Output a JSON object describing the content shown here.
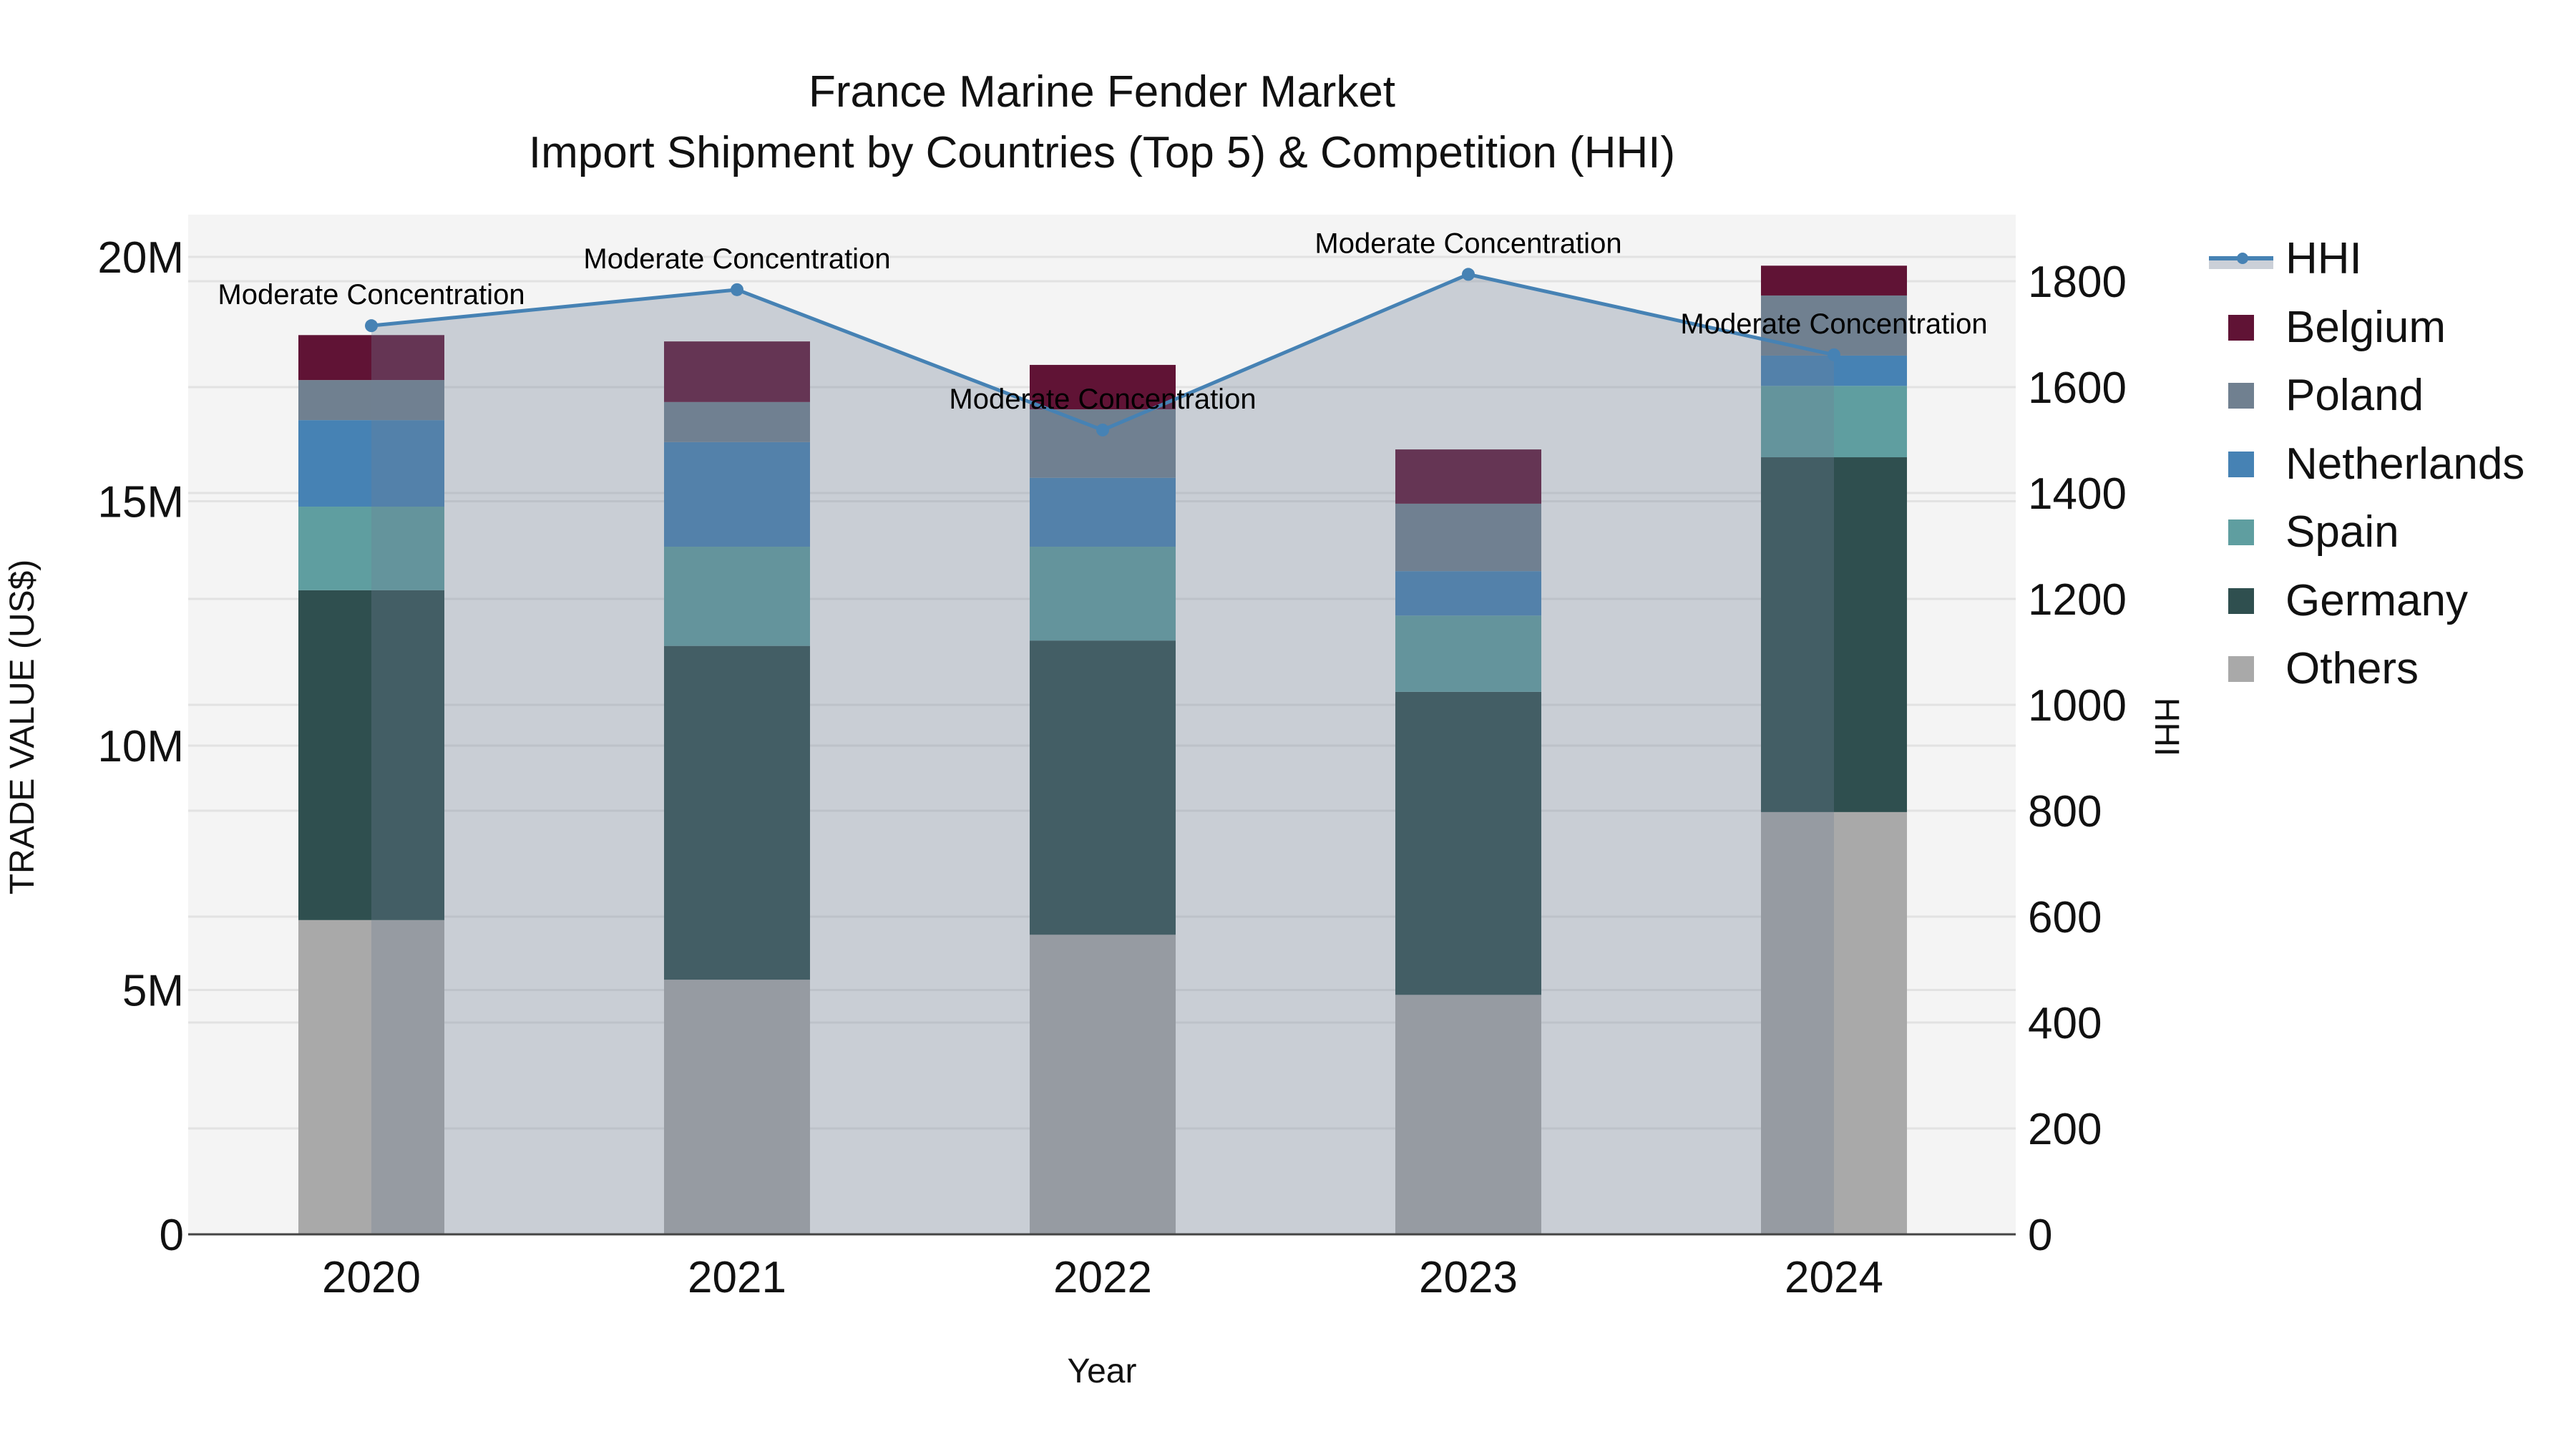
{
  "chart_data": {
    "type": "bar",
    "subtype": "stacked bar with line overlay (secondary axis)",
    "title": "France Marine Fender Market",
    "subtitle": "Import Shipment by Countries (Top 5) & Competition (HHI)",
    "xlabel": "Year",
    "ylabel": "TRADE VALUE (US$)",
    "y2label": "HHI",
    "categories": [
      "2020",
      "2021",
      "2022",
      "2023",
      "2024"
    ],
    "ylim": [
      0,
      20.9
    ],
    "y_ticks": [
      0,
      5,
      10,
      15,
      20
    ],
    "y_tick_labels": [
      "0",
      "5M",
      "10M",
      "15M",
      "20M"
    ],
    "y2lim": [
      0,
      1925
    ],
    "y2_ticks": [
      0,
      200,
      400,
      600,
      800,
      1000,
      1200,
      1400,
      1600,
      1800
    ],
    "y2_tick_labels": [
      "0",
      "200",
      "400",
      "600",
      "800",
      "1000",
      "1200",
      "1400",
      "1600",
      "1800"
    ],
    "units": "million US$",
    "grid": true,
    "legend_position": "right",
    "series": [
      {
        "name": "Others",
        "type": "bar",
        "color": "#a9a9a9",
        "values": [
          6.43,
          5.21,
          6.13,
          4.9,
          8.64
        ]
      },
      {
        "name": "Germany",
        "type": "bar",
        "color": "#2f4f4f",
        "values": [
          6.75,
          6.83,
          6.02,
          6.2,
          7.26
        ]
      },
      {
        "name": "Spain",
        "type": "bar",
        "color": "#5f9ea0",
        "values": [
          1.71,
          2.03,
          1.92,
          1.56,
          1.46
        ]
      },
      {
        "name": "Netherlands",
        "type": "bar",
        "color": "#4682b4",
        "values": [
          1.77,
          2.14,
          1.41,
          0.91,
          0.62
        ]
      },
      {
        "name": "Poland",
        "type": "bar",
        "color": "#708090",
        "values": [
          0.82,
          0.82,
          1.4,
          1.38,
          1.23
        ]
      },
      {
        "name": "Belgium",
        "type": "bar",
        "color": "#601335",
        "values": [
          0.92,
          1.24,
          0.91,
          1.11,
          0.61
        ]
      },
      {
        "name": "HHI",
        "type": "line",
        "axis": "y2",
        "color": "#4682b4",
        "fill": "tozeroy",
        "fill_color": "#c8cdd5",
        "values": [
          1716,
          1784,
          1519,
          1813,
          1661
        ]
      }
    ],
    "annotations": [
      {
        "x": "2020",
        "text": "Moderate Concentration"
      },
      {
        "x": "2021",
        "text": "Moderate Concentration"
      },
      {
        "x": "2022",
        "text": "Moderate Concentration"
      },
      {
        "x": "2023",
        "text": "Moderate Concentration"
      },
      {
        "x": "2024",
        "text": "Moderate Concentration"
      }
    ]
  },
  "legend": {
    "items": [
      {
        "label": "HHI",
        "kind": "line",
        "color": "#4682b4"
      },
      {
        "label": "Belgium",
        "kind": "bar",
        "color": "#601335"
      },
      {
        "label": "Poland",
        "kind": "bar",
        "color": "#708090"
      },
      {
        "label": "Netherlands",
        "kind": "bar",
        "color": "#4682b4"
      },
      {
        "label": "Spain",
        "kind": "bar",
        "color": "#5f9ea0"
      },
      {
        "label": "Germany",
        "kind": "bar",
        "color": "#2f4f4f"
      },
      {
        "label": "Others",
        "kind": "bar",
        "color": "#a9a9a9"
      }
    ]
  },
  "colors": {
    "plot_bg": "#f4f4f4",
    "grid": "#e2e2e2",
    "axis_line": "#444444",
    "hhi_fill": "rgba(112,128,150,0.32)"
  }
}
